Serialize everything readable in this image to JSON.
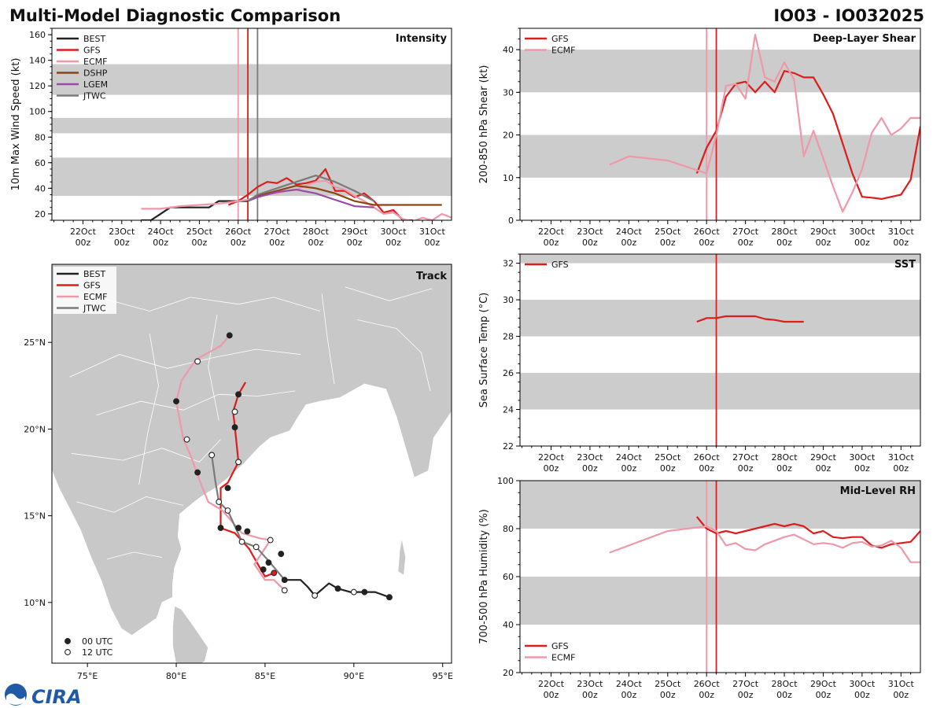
{
  "header": {
    "title": "Multi-Model Diagnostic Comparison",
    "storm": "IO03 - IO032025"
  },
  "colors": {
    "BEST": "#222222",
    "GFS": "#dd1c1c",
    "ECMF": "#ee98a8",
    "DSHP": "#8b4513",
    "LGEM": "#9b4aa8",
    "JTWC": "#7a7a7a",
    "band": "#cccccc",
    "land": "#c8c8c8"
  },
  "time_axis": {
    "ticks": [
      22,
      23,
      24,
      25,
      26,
      27,
      28,
      29,
      30,
      31
    ],
    "labels": [
      "22Oct",
      "23Oct",
      "24Oct",
      "25Oct",
      "26Oct",
      "27Oct",
      "28Oct",
      "29Oct",
      "30Oct",
      "31Oct"
    ],
    "sublabel": "00z",
    "xlim": [
      21.2,
      31.5
    ]
  },
  "chart_data": [
    {
      "id": "intensity",
      "type": "line",
      "title": "Intensity",
      "ylabel": "10m Max Wind Speed (kt)",
      "ylim": [
        15,
        165
      ],
      "yticks": [
        20,
        40,
        60,
        80,
        100,
        120,
        140,
        160
      ],
      "bands": [
        [
          34,
          64
        ],
        [
          83,
          95
        ],
        [
          113,
          137
        ]
      ],
      "vlines": [
        {
          "x": 26.0,
          "color": "ECMF"
        },
        {
          "x": 26.25,
          "color": "GFS"
        },
        {
          "x": 26.5,
          "color": "JTWC"
        }
      ],
      "legend": [
        "BEST",
        "GFS",
        "ECMF",
        "DSHP",
        "LGEM",
        "JTWC"
      ],
      "series": [
        {
          "name": "BEST",
          "x": [
            23.5,
            23.75,
            24.0,
            24.25,
            24.5,
            24.75,
            25.0,
            25.25,
            25.5,
            25.75,
            26.0,
            26.25
          ],
          "y": [
            15,
            15,
            20,
            25,
            25,
            25,
            25,
            25,
            30,
            30,
            30,
            30
          ]
        },
        {
          "name": "GFS",
          "x": [
            25.75,
            26.0,
            26.25,
            26.5,
            26.75,
            27.0,
            27.25,
            27.5,
            27.75,
            28.0,
            28.25,
            28.5,
            28.75,
            29.0,
            29.25,
            29.5,
            29.75,
            30.0,
            30.25,
            30.5
          ],
          "y": [
            27,
            30,
            35,
            41,
            45,
            44,
            48,
            43,
            44,
            46,
            55,
            38,
            38,
            33,
            36,
            30,
            21,
            23,
            15,
            15
          ]
        },
        {
          "name": "ECMF",
          "x": [
            23.5,
            24.0,
            24.5,
            25.0,
            25.5,
            26.0,
            26.25,
            26.5,
            26.75,
            27.0,
            27.25,
            27.5,
            27.75,
            28.0,
            28.25,
            28.5,
            28.75,
            29.0,
            29.25,
            29.5,
            29.75,
            30.0,
            30.25,
            30.5,
            30.75,
            31.0,
            31.25,
            31.5
          ],
          "y": [
            24,
            24,
            26,
            27,
            28,
            30,
            31,
            34,
            36,
            36,
            38,
            39,
            42,
            45,
            46,
            41,
            39,
            34,
            30,
            25,
            20,
            21,
            16,
            14,
            17,
            15,
            20,
            17
          ]
        },
        {
          "name": "DSHP",
          "x": [
            26.25,
            26.5,
            27.0,
            27.5,
            28.0,
            28.5,
            29.0,
            29.5,
            30.0,
            30.5,
            31.0,
            31.25
          ],
          "y": [
            30,
            34,
            38,
            42,
            40,
            36,
            30,
            27,
            27,
            27,
            27,
            27
          ]
        },
        {
          "name": "LGEM",
          "x": [
            26.25,
            26.5,
            27.0,
            27.5,
            28.0,
            28.5,
            29.0,
            29.5
          ],
          "y": [
            30,
            33,
            37,
            39,
            36,
            31,
            26,
            25
          ]
        },
        {
          "name": "JTWC",
          "x": [
            26.25,
            26.5,
            27.0,
            27.5,
            28.0,
            28.5,
            29.0,
            29.5
          ],
          "y": [
            30,
            35,
            40,
            45,
            50,
            45,
            38,
            30
          ]
        }
      ]
    },
    {
      "id": "shear",
      "type": "line",
      "title": "Deep-Layer Shear",
      "ylabel": "200-850 hPa Shear (kt)",
      "ylim": [
        0,
        45
      ],
      "yticks": [
        0,
        10,
        20,
        30,
        40
      ],
      "bands": [
        [
          10,
          20
        ],
        [
          30,
          40
        ]
      ],
      "vlines": [
        {
          "x": 26.0,
          "color": "ECMF"
        },
        {
          "x": 26.25,
          "color": "GFS"
        }
      ],
      "legend": [
        "GFS",
        "ECMF"
      ],
      "series": [
        {
          "name": "GFS",
          "x": [
            25.75,
            26.0,
            26.25,
            26.5,
            26.75,
            27.0,
            27.25,
            27.5,
            27.75,
            28.0,
            28.25,
            28.5,
            28.75,
            29.0,
            29.25,
            29.5,
            29.75,
            30.0,
            30.25,
            30.5,
            30.75,
            31.0,
            31.25,
            31.5
          ],
          "y": [
            11,
            17,
            21,
            29,
            32,
            32.5,
            30,
            32.5,
            30,
            35,
            34.5,
            33.5,
            33.5,
            29.5,
            25,
            18,
            11,
            5.5,
            5.3,
            5,
            5.5,
            6,
            9.5,
            22
          ]
        },
        {
          "name": "ECMF",
          "x": [
            23.5,
            24.0,
            24.5,
            25.0,
            25.5,
            26.0,
            26.25,
            26.5,
            26.75,
            27.0,
            27.25,
            27.5,
            27.75,
            28.0,
            28.25,
            28.5,
            28.75,
            29.0,
            29.25,
            29.5,
            29.75,
            30.0,
            30.25,
            30.5,
            30.75,
            31.0,
            31.25,
            31.5
          ],
          "y": [
            13,
            15,
            14.5,
            14,
            12.5,
            11,
            20,
            31.5,
            32,
            28.5,
            43.5,
            33.5,
            32.5,
            37,
            33,
            15,
            21,
            14.5,
            8,
            2,
            6.5,
            12,
            20.5,
            24,
            20,
            21.5,
            24,
            24
          ]
        }
      ]
    },
    {
      "id": "sst",
      "type": "line",
      "title": "SST",
      "ylabel": "Sea Surface Temp (°C)",
      "ylim": [
        22,
        32.5
      ],
      "yticks": [
        22,
        24,
        26,
        28,
        30,
        32
      ],
      "bands": [
        [
          24,
          26
        ],
        [
          28,
          30
        ],
        [
          32,
          34
        ]
      ],
      "vlines": [
        {
          "x": 26.25,
          "color": "GFS"
        }
      ],
      "legend": [
        "GFS"
      ],
      "series": [
        {
          "name": "GFS",
          "x": [
            25.75,
            26.0,
            26.25,
            26.5,
            26.75,
            27.0,
            27.25,
            27.5,
            27.75,
            28.0,
            28.25,
            28.5
          ],
          "y": [
            28.8,
            29.0,
            29.0,
            29.1,
            29.1,
            29.1,
            29.1,
            28.95,
            28.9,
            28.8,
            28.8,
            28.8
          ]
        }
      ]
    },
    {
      "id": "rh",
      "type": "line",
      "title": "Mid-Level RH",
      "ylabel": "700-500 hPa Humidity (%)",
      "ylim": [
        20,
        100
      ],
      "yticks": [
        20,
        40,
        60,
        80,
        100
      ],
      "bands": [
        [
          40,
          60
        ],
        [
          80,
          100
        ]
      ],
      "vlines": [
        {
          "x": 26.0,
          "color": "ECMF"
        },
        {
          "x": 26.25,
          "color": "GFS"
        }
      ],
      "legend": [
        "GFS",
        "ECMF"
      ],
      "series": [
        {
          "name": "GFS",
          "x": [
            25.75,
            26.0,
            26.25,
            26.5,
            26.75,
            27.0,
            27.25,
            27.5,
            27.75,
            28.0,
            28.25,
            28.5,
            28.75,
            29.0,
            29.25,
            29.5,
            29.75,
            30.0,
            30.25,
            30.5,
            30.75,
            31.0,
            31.25,
            31.5
          ],
          "y": [
            85,
            80,
            78,
            79,
            78,
            79,
            80,
            81,
            82,
            81,
            82,
            81,
            78,
            79,
            76.5,
            76,
            76.5,
            76.5,
            73,
            72,
            73.5,
            74,
            74.5,
            79
          ]
        },
        {
          "name": "ECMF",
          "x": [
            23.5,
            24.0,
            24.5,
            25.0,
            25.5,
            26.0,
            26.25,
            26.5,
            26.75,
            27.0,
            27.25,
            27.5,
            27.75,
            28.0,
            28.25,
            28.5,
            28.75,
            29.0,
            29.25,
            29.5,
            29.75,
            30.0,
            30.25,
            30.5,
            30.75,
            31.0,
            31.25,
            31.5
          ],
          "y": [
            70,
            73,
            76,
            79,
            80,
            81,
            79,
            73,
            74,
            71.5,
            71,
            73.5,
            75,
            76.5,
            77.5,
            75.5,
            73.5,
            74,
            73.5,
            72,
            74,
            74.5,
            72.5,
            73,
            75,
            72,
            66,
            66
          ]
        }
      ]
    },
    {
      "id": "track",
      "type": "scatter",
      "title": "Track",
      "xlim": [
        73,
        95.5
      ],
      "ylim": [
        6.5,
        29.5
      ],
      "xticks": [
        75,
        80,
        85,
        90,
        95
      ],
      "xtick_labels": [
        "75°E",
        "80°E",
        "85°E",
        "90°E",
        "95°E"
      ],
      "yticks": [
        10,
        15,
        20,
        25
      ],
      "ytick_labels": [
        "10°N",
        "15°N",
        "20°N",
        "25°N"
      ],
      "legend": [
        "BEST",
        "GFS",
        "ECMF",
        "JTWC"
      ],
      "marker_legend": [
        "00 UTC",
        "12 UTC"
      ],
      "series": [
        {
          "name": "BEST",
          "lon": [
            92.0,
            91.2,
            90.6,
            89.8,
            89.1,
            88.6,
            87.8,
            87.4,
            87.0,
            86.4,
            86.1
          ],
          "lat": [
            10.3,
            10.6,
            10.6,
            10.6,
            10.8,
            11.1,
            10.4,
            10.9,
            11.3,
            11.3,
            11.3
          ],
          "markers": [
            [
              92.0,
              10.3,
              0
            ],
            [
              90.6,
              10.6,
              0
            ],
            [
              89.1,
              10.8,
              0
            ]
          ]
        },
        {
          "name": "GFS",
          "lon": [
            85.5,
            85.0,
            84.6,
            84.1,
            83.3,
            82.5,
            82.5,
            82.9,
            83.5,
            83.3,
            83.2,
            83.5,
            83.9
          ],
          "lat": [
            11.7,
            11.5,
            12.2,
            13.1,
            14.0,
            14.3,
            16.6,
            16.9,
            18.1,
            20.1,
            21.0,
            22.0,
            22.7
          ],
          "markers": [
            [
              85.5,
              11.7,
              0
            ],
            [
              82.5,
              14.3,
              0
            ],
            [
              82.9,
              16.6,
              0
            ],
            [
              83.5,
              18.1,
              1
            ],
            [
              83.3,
              20.1,
              0
            ],
            [
              83.3,
              21.0,
              1
            ],
            [
              83.5,
              22.0,
              0
            ]
          ]
        },
        {
          "name": "ECMF",
          "lon": [
            86.1,
            85.5,
            85.0,
            84.4,
            85.3,
            84.7,
            83.7,
            82.6,
            81.8,
            81.4,
            80.8,
            80.4,
            80.0,
            80.3,
            81.1,
            82.5,
            83.0
          ],
          "lat": [
            10.7,
            11.3,
            11.3,
            12.2,
            13.6,
            13.7,
            14.0,
            15.3,
            15.8,
            16.8,
            18.5,
            19.4,
            21.6,
            22.8,
            24.0,
            24.8,
            25.4
          ],
          "markers": [
            [
              86.1,
              10.7,
              1
            ],
            [
              85.3,
              13.6,
              1
            ],
            [
              80.6,
              19.4,
              1
            ],
            [
              80.0,
              21.6,
              0
            ],
            [
              81.2,
              23.9,
              1
            ],
            [
              83.0,
              25.4,
              0
            ]
          ]
        },
        {
          "name": "JTWC",
          "lon": [
            86.1,
            85.2,
            84.5,
            83.7,
            82.9,
            82.4,
            82.2,
            82.0
          ],
          "lat": [
            11.3,
            12.4,
            13.2,
            13.5,
            15.3,
            15.8,
            17.0,
            18.5
          ],
          "markers": [
            [
              86.1,
              11.3,
              0
            ],
            [
              84.5,
              13.2,
              1
            ],
            [
              83.7,
              13.5,
              1
            ],
            [
              82.9,
              15.3,
              1
            ],
            [
              82.4,
              15.8,
              1
            ],
            [
              82.0,
              18.5,
              1
            ]
          ]
        },
        {
          "name": "BESTEARLY",
          "markers": [
            [
              85.9,
              12.8,
              0
            ],
            [
              85.2,
              12.3,
              0
            ],
            [
              84.9,
              11.9,
              0
            ],
            [
              87.8,
              10.4,
              1
            ],
            [
              90.0,
              10.6,
              1
            ],
            [
              84.0,
              14.1,
              0
            ],
            [
              83.5,
              14.3,
              0
            ],
            [
              81.2,
              17.5,
              0
            ]
          ]
        }
      ]
    }
  ],
  "footer": {
    "logo_text": "CIRA"
  }
}
